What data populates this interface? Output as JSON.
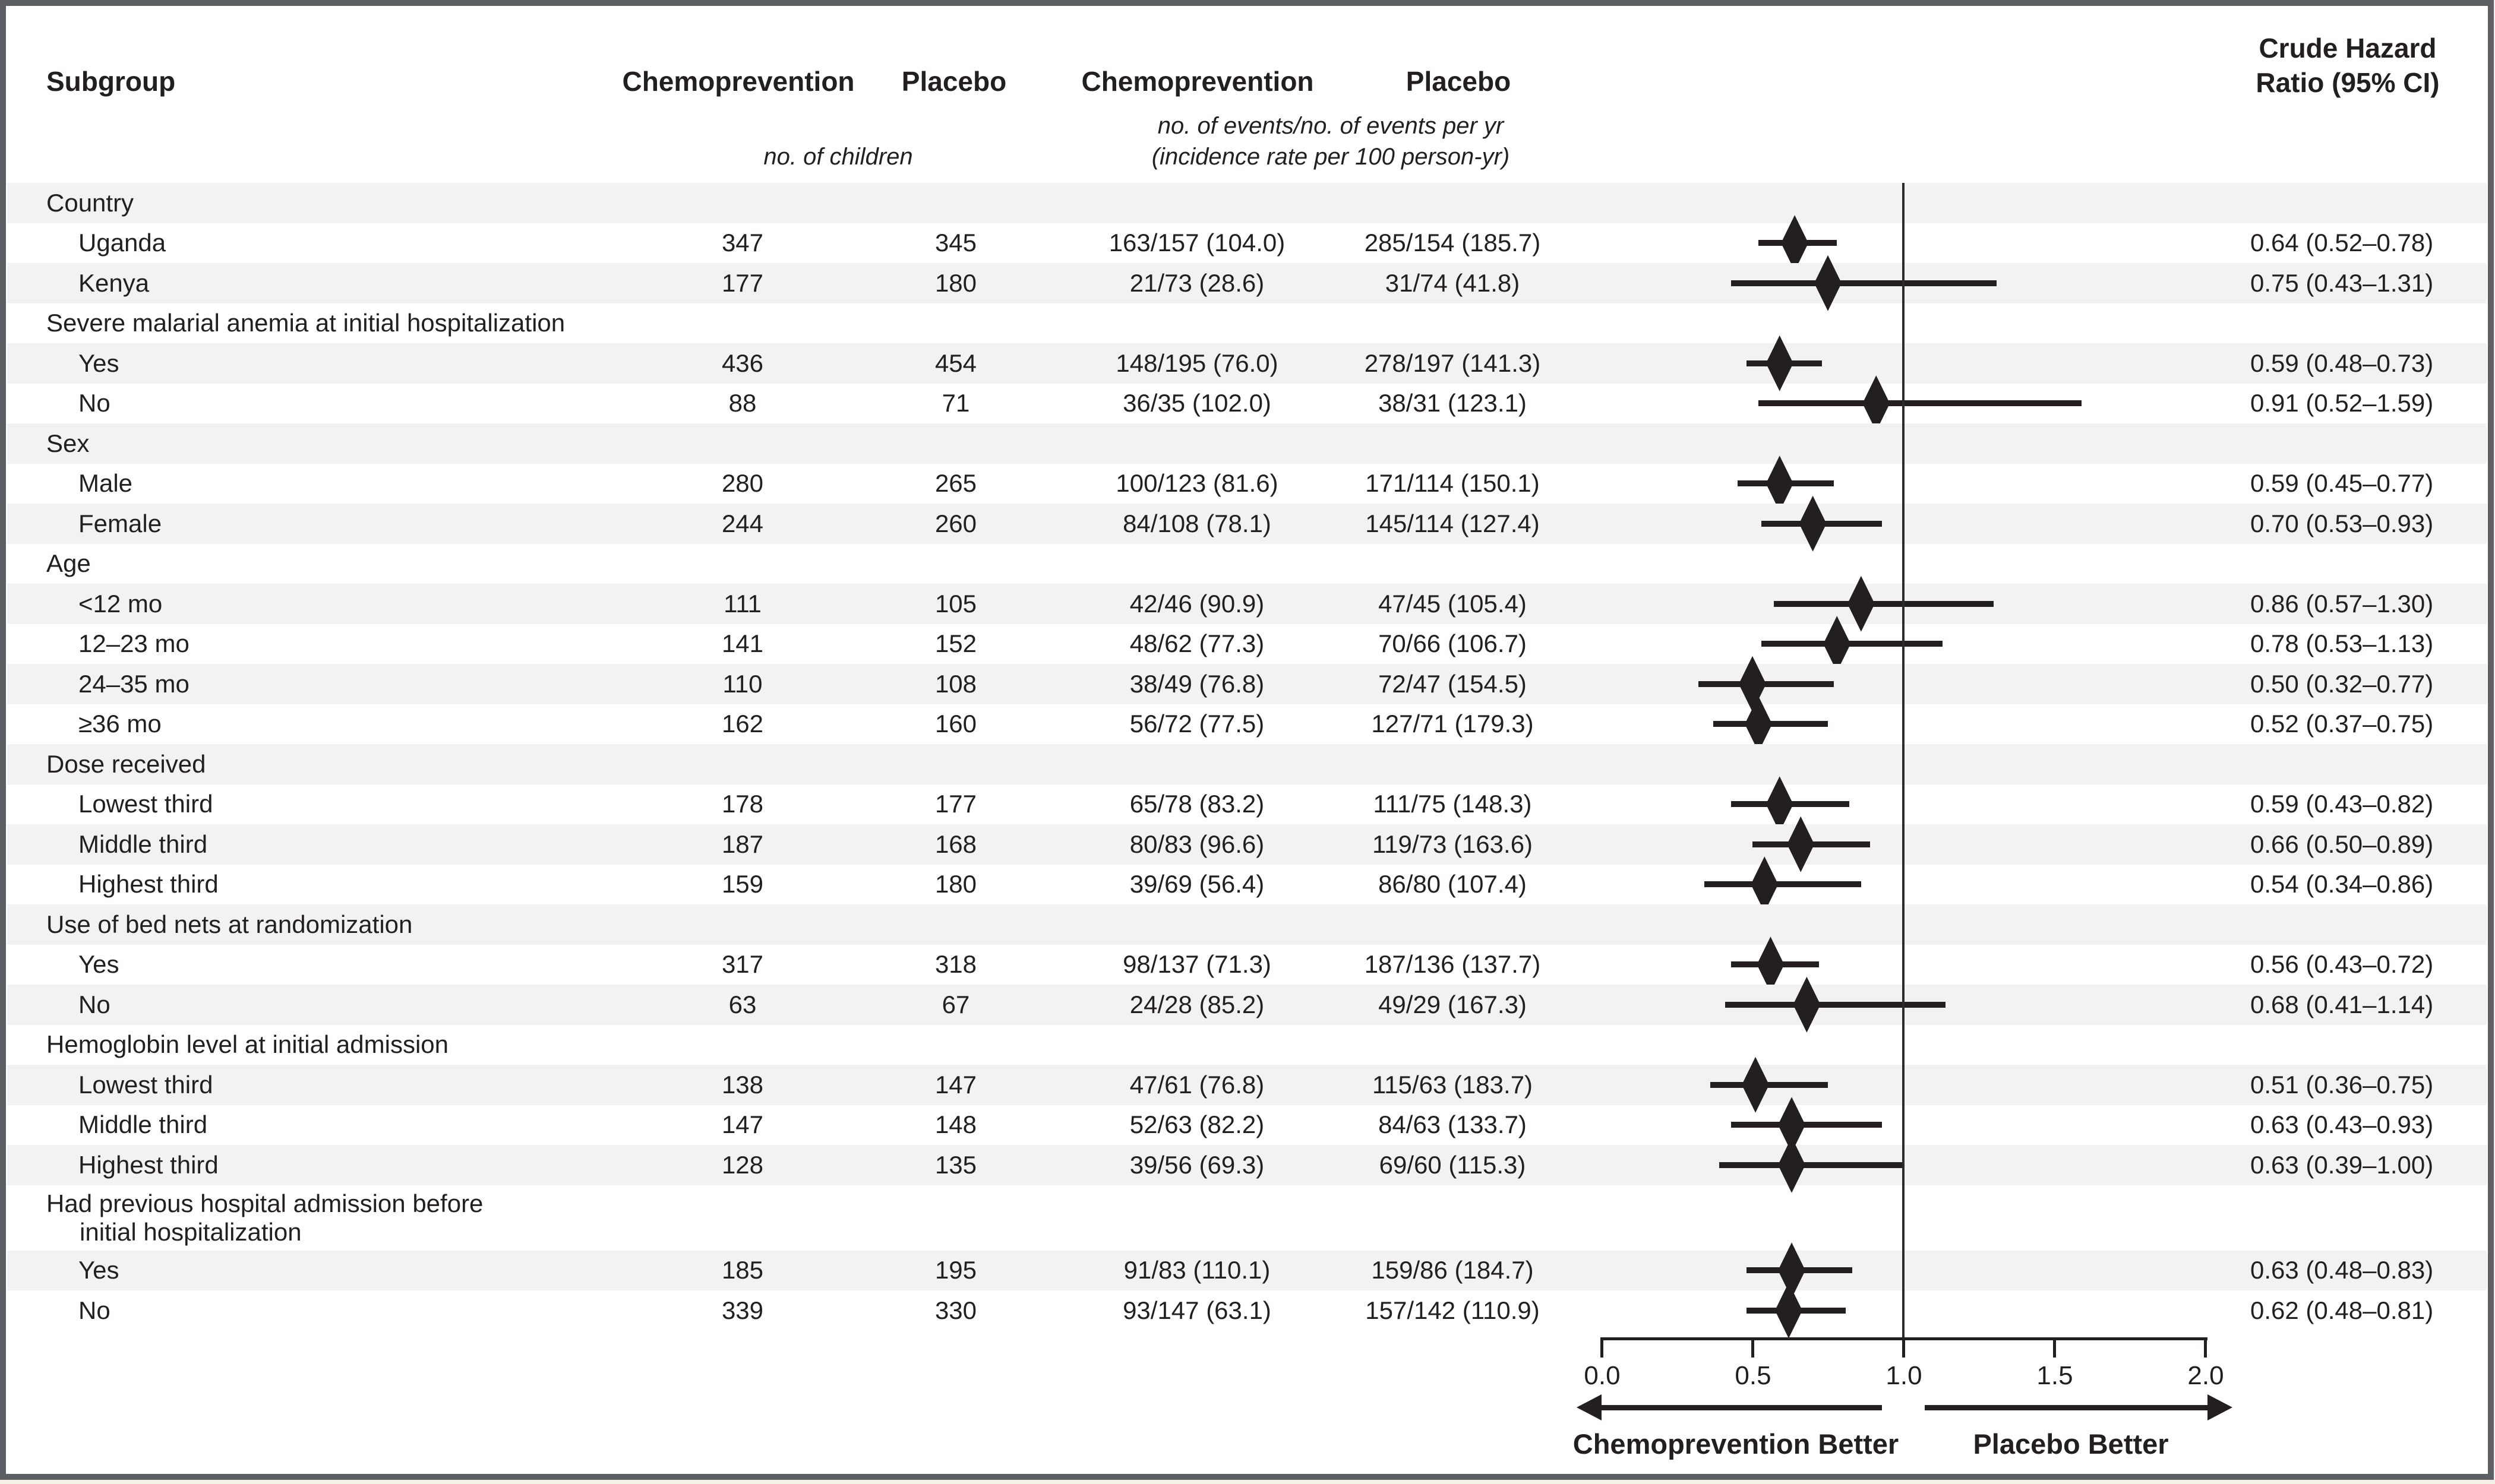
{
  "header": {
    "subgroup": "Subgroup",
    "col_chemo_children": "Chemoprevention",
    "col_placebo_children": "Placebo",
    "col_chemo_events": "Chemoprevention",
    "col_placebo_events": "Placebo",
    "unit_children": "no. of children",
    "unit_events_line1": "no. of events/no. of events per yr",
    "unit_events_line2": "(incidence rate per 100 person-yr)",
    "hr_line1": "Crude Hazard",
    "hr_line2": "Ratio (95% CI)"
  },
  "chart_data": {
    "type": "scatter",
    "variant": "forest_plot",
    "title": "Crude Hazard Ratio by Subgroup",
    "x_axis": {
      "min": 0,
      "max": 2,
      "reference_line": 1.0,
      "tick_values": [
        0.0,
        0.5,
        1.0,
        1.5,
        2.0
      ],
      "tick_labels": [
        "0.0",
        "0.5",
        "1.0",
        "1.5",
        "2.0"
      ]
    },
    "direction_labels": {
      "left": "Chemoprevention Better",
      "right": "Placebo Better"
    },
    "legend_position": "none",
    "grid": false,
    "rows": [
      {
        "kind": "group",
        "label": "Country",
        "shaded": true
      },
      {
        "kind": "item",
        "label": "Uganda",
        "chemo_n": "347",
        "placebo_n": "345",
        "chemo_events": "163/157 (104.0)",
        "placebo_events": "285/154 (185.7)",
        "hr": 0.64,
        "ci_low": 0.52,
        "ci_high": 0.78,
        "hr_text": "0.64 (0.52–0.78)",
        "shaded": false
      },
      {
        "kind": "item",
        "label": "Kenya",
        "chemo_n": "177",
        "placebo_n": "180",
        "chemo_events": "21/73 (28.6)",
        "placebo_events": "31/74 (41.8)",
        "hr": 0.75,
        "ci_low": 0.43,
        "ci_high": 1.31,
        "hr_text": "0.75 (0.43–1.31)",
        "shaded": true
      },
      {
        "kind": "group",
        "label": "Severe malarial anemia at initial hospitalization",
        "shaded": false
      },
      {
        "kind": "item",
        "label": "Yes",
        "chemo_n": "436",
        "placebo_n": "454",
        "chemo_events": "148/195 (76.0)",
        "placebo_events": "278/197 (141.3)",
        "hr": 0.59,
        "ci_low": 0.48,
        "ci_high": 0.73,
        "hr_text": "0.59 (0.48–0.73)",
        "shaded": true
      },
      {
        "kind": "item",
        "label": "No",
        "chemo_n": "88",
        "placebo_n": "71",
        "chemo_events": "36/35 (102.0)",
        "placebo_events": "38/31 (123.1)",
        "hr": 0.91,
        "ci_low": 0.52,
        "ci_high": 1.59,
        "hr_text": "0.91 (0.52–1.59)",
        "shaded": false
      },
      {
        "kind": "group",
        "label": "Sex",
        "shaded": true
      },
      {
        "kind": "item",
        "label": "Male",
        "chemo_n": "280",
        "placebo_n": "265",
        "chemo_events": "100/123 (81.6)",
        "placebo_events": "171/114 (150.1)",
        "hr": 0.59,
        "ci_low": 0.45,
        "ci_high": 0.77,
        "hr_text": "0.59 (0.45–0.77)",
        "shaded": false
      },
      {
        "kind": "item",
        "label": "Female",
        "chemo_n": "244",
        "placebo_n": "260",
        "chemo_events": "84/108 (78.1)",
        "placebo_events": "145/114 (127.4)",
        "hr": 0.7,
        "ci_low": 0.53,
        "ci_high": 0.93,
        "hr_text": "0.70 (0.53–0.93)",
        "shaded": true
      },
      {
        "kind": "group",
        "label": "Age",
        "shaded": false
      },
      {
        "kind": "item",
        "label": "<12 mo",
        "chemo_n": "111",
        "placebo_n": "105",
        "chemo_events": "42/46 (90.9)",
        "placebo_events": "47/45 (105.4)",
        "hr": 0.86,
        "ci_low": 0.57,
        "ci_high": 1.3,
        "hr_text": "0.86 (0.57–1.30)",
        "shaded": true
      },
      {
        "kind": "item",
        "label": "12–23 mo",
        "chemo_n": "141",
        "placebo_n": "152",
        "chemo_events": "48/62 (77.3)",
        "placebo_events": "70/66 (106.7)",
        "hr": 0.78,
        "ci_low": 0.53,
        "ci_high": 1.13,
        "hr_text": "0.78 (0.53–1.13)",
        "shaded": false
      },
      {
        "kind": "item",
        "label": "24–35 mo",
        "chemo_n": "110",
        "placebo_n": "108",
        "chemo_events": "38/49 (76.8)",
        "placebo_events": "72/47 (154.5)",
        "hr": 0.5,
        "ci_low": 0.32,
        "ci_high": 0.77,
        "hr_text": "0.50 (0.32–0.77)",
        "shaded": true
      },
      {
        "kind": "item",
        "label": "≥36 mo",
        "chemo_n": "162",
        "placebo_n": "160",
        "chemo_events": "56/72 (77.5)",
        "placebo_events": "127/71 (179.3)",
        "hr": 0.52,
        "ci_low": 0.37,
        "ci_high": 0.75,
        "hr_text": "0.52 (0.37–0.75)",
        "shaded": false
      },
      {
        "kind": "group",
        "label": "Dose received",
        "shaded": true
      },
      {
        "kind": "item",
        "label": "Lowest third",
        "chemo_n": "178",
        "placebo_n": "177",
        "chemo_events": "65/78 (83.2)",
        "placebo_events": "111/75 (148.3)",
        "hr": 0.59,
        "ci_low": 0.43,
        "ci_high": 0.82,
        "hr_text": "0.59 (0.43–0.82)",
        "shaded": false
      },
      {
        "kind": "item",
        "label": "Middle third",
        "chemo_n": "187",
        "placebo_n": "168",
        "chemo_events": "80/83 (96.6)",
        "placebo_events": "119/73 (163.6)",
        "hr": 0.66,
        "ci_low": 0.5,
        "ci_high": 0.89,
        "hr_text": "0.66 (0.50–0.89)",
        "shaded": true
      },
      {
        "kind": "item",
        "label": "Highest third",
        "chemo_n": "159",
        "placebo_n": "180",
        "chemo_events": "39/69 (56.4)",
        "placebo_events": "86/80 (107.4)",
        "hr": 0.54,
        "ci_low": 0.34,
        "ci_high": 0.86,
        "hr_text": "0.54 (0.34–0.86)",
        "shaded": false
      },
      {
        "kind": "group",
        "label": "Use of bed nets at randomization",
        "shaded": true
      },
      {
        "kind": "item",
        "label": "Yes",
        "chemo_n": "317",
        "placebo_n": "318",
        "chemo_events": "98/137 (71.3)",
        "placebo_events": "187/136 (137.7)",
        "hr": 0.56,
        "ci_low": 0.43,
        "ci_high": 0.72,
        "hr_text": "0.56 (0.43–0.72)",
        "shaded": false
      },
      {
        "kind": "item",
        "label": "No",
        "chemo_n": "63",
        "placebo_n": "67",
        "chemo_events": "24/28 (85.2)",
        "placebo_events": "49/29 (167.3)",
        "hr": 0.68,
        "ci_low": 0.41,
        "ci_high": 1.14,
        "hr_text": "0.68 (0.41–1.14)",
        "shaded": true
      },
      {
        "kind": "group",
        "label": "Hemoglobin level at initial admission",
        "shaded": false
      },
      {
        "kind": "item",
        "label": "Lowest third",
        "chemo_n": "138",
        "placebo_n": "147",
        "chemo_events": "47/61 (76.8)",
        "placebo_events": "115/63 (183.7)",
        "hr": 0.51,
        "ci_low": 0.36,
        "ci_high": 0.75,
        "hr_text": "0.51 (0.36–0.75)",
        "shaded": true
      },
      {
        "kind": "item",
        "label": "Middle third",
        "chemo_n": "147",
        "placebo_n": "148",
        "chemo_events": "52/63 (82.2)",
        "placebo_events": "84/63 (133.7)",
        "hr": 0.63,
        "ci_low": 0.43,
        "ci_high": 0.93,
        "hr_text": "0.63 (0.43–0.93)",
        "shaded": false
      },
      {
        "kind": "item",
        "label": "Highest third",
        "chemo_n": "128",
        "placebo_n": "135",
        "chemo_events": "39/56 (69.3)",
        "placebo_events": "69/60 (115.3)",
        "hr": 0.63,
        "ci_low": 0.39,
        "ci_high": 1.0,
        "hr_text": "0.63 (0.39–1.00)",
        "shaded": true
      },
      {
        "kind": "group2",
        "label": "Had previous hospital admission before",
        "label2": "initial hospitalization",
        "shaded": false
      },
      {
        "kind": "item",
        "label": "Yes",
        "chemo_n": "185",
        "placebo_n": "195",
        "chemo_events": "91/83 (110.1)",
        "placebo_events": "159/86 (184.7)",
        "hr": 0.63,
        "ci_low": 0.48,
        "ci_high": 0.83,
        "hr_text": "0.63 (0.48–0.83)",
        "shaded": true
      },
      {
        "kind": "item",
        "label": "No",
        "chemo_n": "339",
        "placebo_n": "330",
        "chemo_events": "93/147 (63.1)",
        "placebo_events": "157/142 (110.9)",
        "hr": 0.62,
        "ci_low": 0.48,
        "ci_high": 0.81,
        "hr_text": "0.62 (0.48–0.81)",
        "shaded": false
      }
    ]
  }
}
